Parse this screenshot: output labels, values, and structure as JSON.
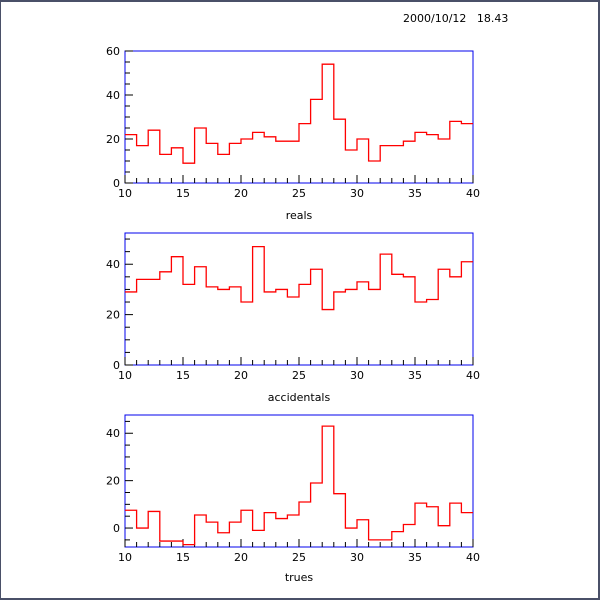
{
  "timestamp": "2000/10/12   18.43",
  "colors": {
    "histogram": "#ff0000",
    "frame": "#0000ee",
    "text": "#000000"
  },
  "chart_data": [
    {
      "type": "line",
      "style": "step-histogram",
      "xlabel": "reals",
      "xlim": [
        10,
        40
      ],
      "ylim": [
        0,
        60
      ],
      "xticks": [
        10,
        15,
        20,
        25,
        30,
        35,
        40
      ],
      "yticks": [
        0,
        20,
        40,
        60
      ],
      "bin_edges_start": 10,
      "bin_width": 1,
      "values": [
        22,
        17,
        24,
        13,
        16,
        9,
        25,
        18,
        13,
        18,
        20,
        23,
        21,
        19,
        19,
        27,
        38,
        54,
        29,
        15,
        20,
        10,
        17,
        17,
        19,
        23,
        22,
        20,
        28,
        27
      ]
    },
    {
      "type": "line",
      "style": "step-histogram",
      "xlabel": "accidentals",
      "xlim": [
        10,
        40
      ],
      "ylim": [
        0,
        52.4
      ],
      "xticks": [
        10,
        15,
        20,
        25,
        30,
        35,
        40
      ],
      "yticks": [
        0,
        20,
        40
      ],
      "bin_edges_start": 10,
      "bin_width": 1,
      "values": [
        29,
        34,
        34,
        37,
        43,
        32,
        39,
        31,
        30,
        31,
        25,
        47,
        29,
        30,
        27,
        32,
        38,
        22,
        29,
        30,
        33,
        30,
        44,
        36,
        35,
        25,
        26,
        38,
        35,
        41
      ]
    },
    {
      "type": "line",
      "style": "step-histogram",
      "xlabel": "trues",
      "xlim": [
        10,
        40
      ],
      "ylim": [
        -8,
        47.7
      ],
      "xticks": [
        10,
        15,
        20,
        25,
        30,
        35,
        40
      ],
      "yticks": [
        0,
        20,
        40
      ],
      "bin_edges_start": 10,
      "bin_width": 1,
      "values": [
        7.5,
        0,
        7,
        -5.5,
        -5.5,
        -7,
        5.5,
        2.5,
        -2,
        2.5,
        7.5,
        -1,
        6.5,
        4,
        5.5,
        11,
        19,
        43,
        14.5,
        0,
        3.5,
        -5,
        -5,
        -1.5,
        1.5,
        10.5,
        9,
        1,
        10.5,
        6.5
      ]
    }
  ]
}
